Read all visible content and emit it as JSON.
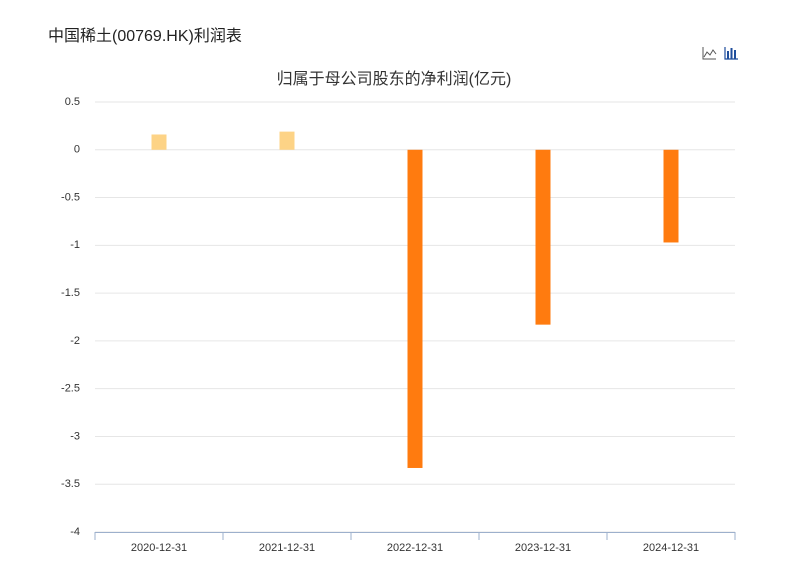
{
  "page_title": "中国稀土(00769.HK)利润表",
  "chart_data": {
    "type": "bar",
    "title": "归属于母公司股东的净利润(亿元)",
    "categories": [
      "2020-12-31",
      "2021-12-31",
      "2022-12-31",
      "2023-12-31",
      "2024-12-31"
    ],
    "values": [
      0.16,
      0.19,
      -3.33,
      -1.83,
      -0.97
    ],
    "colors": [
      "#fdd386",
      "#fdd386",
      "#ff7b0f",
      "#ff7b0f",
      "#ff7b0f"
    ],
    "ylim": [
      -4,
      0.5
    ],
    "yticks": [
      0.5,
      0,
      -0.5,
      -1,
      -1.5,
      -2,
      -2.5,
      -3,
      -3.5,
      -4
    ],
    "grid": true
  }
}
